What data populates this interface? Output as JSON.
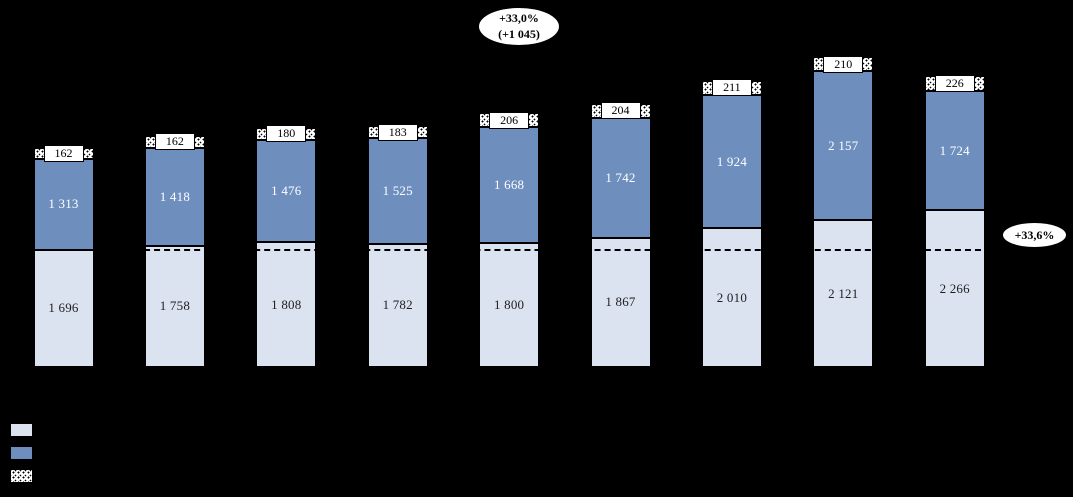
{
  "background": "#000000",
  "chart_data": {
    "type": "bar",
    "stacked": true,
    "orientation": "vertical",
    "categories": [
      "",
      "",
      "",
      "",
      "",
      "",
      "",
      "",
      ""
    ],
    "series": [
      {
        "name": "bottom-segment",
        "color": "#dbe2f0",
        "label_text_color": "#1f1f1f",
        "values": [
          1696,
          1758,
          1808,
          1782,
          1800,
          1867,
          2010,
          2121,
          2266
        ]
      },
      {
        "name": "middle-segment",
        "color": "#6e8ebe",
        "label_text_color": "#ffffff",
        "values": [
          1313,
          1418,
          1476,
          1525,
          1668,
          1742,
          1924,
          2157,
          1724
        ]
      },
      {
        "name": "top-segment",
        "color": "#ffffff",
        "pattern": "dotted",
        "label_style": "boxed-white",
        "values": [
          162,
          162,
          180,
          183,
          206,
          204,
          211,
          210,
          226
        ]
      }
    ],
    "annotations": {
      "total_growth": {
        "line1": "+33,0%",
        "line2": "(+1 045)"
      },
      "bottom_segment_growth": "+33,6%"
    },
    "reference_line": {
      "style": "dashed",
      "level_value": 1696
    },
    "number_format": "space thousands separator (French)",
    "legend_position": "bottom-left",
    "grid": false
  },
  "legend": {
    "items": [
      {
        "swatch": "light-solid"
      },
      {
        "swatch": "blue-solid"
      },
      {
        "swatch": "white-dotted"
      }
    ]
  }
}
